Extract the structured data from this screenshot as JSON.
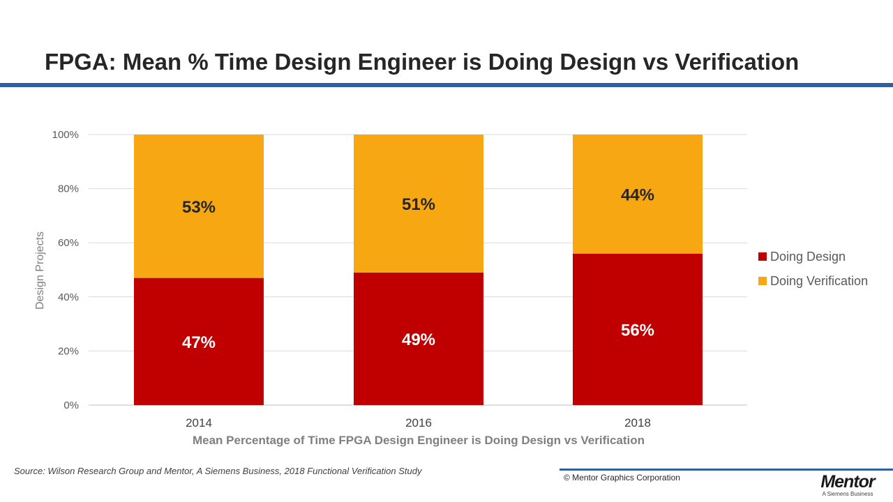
{
  "slide": {
    "title": "FPGA: Mean % Time Design Engineer is Doing Design vs Verification"
  },
  "footer": {
    "source": "Source:  Wilson Research Group and Mentor, A Siemens Business, 2018 Functional Verification Study",
    "copyright": "© Mentor Graphics Corporation",
    "logo_name": "Mentor",
    "logo_sub": "A Siemens Business"
  },
  "colors": {
    "design": "#c00000",
    "verification": "#f7a712",
    "accent": "#2e5f9e"
  },
  "chart_data": {
    "type": "bar",
    "stacked": true,
    "categories": [
      "2014",
      "2016",
      "2018"
    ],
    "series": [
      {
        "name": "Doing Design",
        "values": [
          47,
          49,
          56
        ],
        "labels": [
          "47%",
          "49%",
          "56%"
        ]
      },
      {
        "name": "Doing Verification",
        "values": [
          53,
          51,
          44
        ],
        "labels": [
          "53%",
          "51%",
          "44%"
        ]
      }
    ],
    "ylim": [
      0,
      100
    ],
    "yticks": [
      0,
      20,
      40,
      60,
      80,
      100
    ],
    "ytick_labels": [
      "0%",
      "20%",
      "40%",
      "60%",
      "80%",
      "100%"
    ],
    "ylabel": "Design Projects",
    "xlabel": "Mean Percentage of Time FPGA Design Engineer is Doing Design vs Verification",
    "grid": true,
    "legend_position": "right"
  }
}
